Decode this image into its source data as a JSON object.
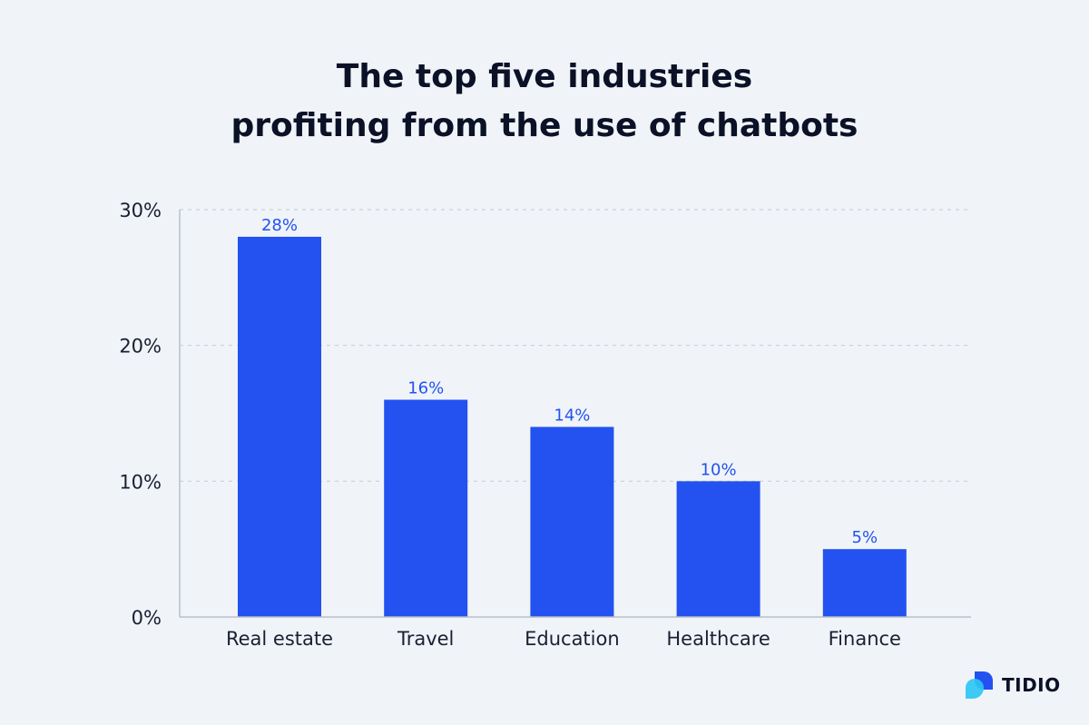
{
  "chart_data": {
    "type": "bar",
    "title_lines": [
      "The top five industries",
      "profiting from the use of chatbots"
    ],
    "categories": [
      "Real estate",
      "Travel",
      "Education",
      "Healthcare",
      "Finance"
    ],
    "values": [
      28,
      16,
      14,
      10,
      5
    ],
    "value_labels": [
      "28%",
      "16%",
      "14%",
      "10%",
      "5%"
    ],
    "yticks": [
      0,
      10,
      20,
      30
    ],
    "ytick_labels": [
      "0%",
      "10%",
      "20%",
      "30%"
    ],
    "ylim": [
      0,
      30
    ],
    "grid": true,
    "bar_color": "#2352f0",
    "label_color": "#2352f0"
  },
  "brand": {
    "name": "TIDIO",
    "mark_colors": [
      "#2352f0",
      "#2ec5f4"
    ]
  }
}
